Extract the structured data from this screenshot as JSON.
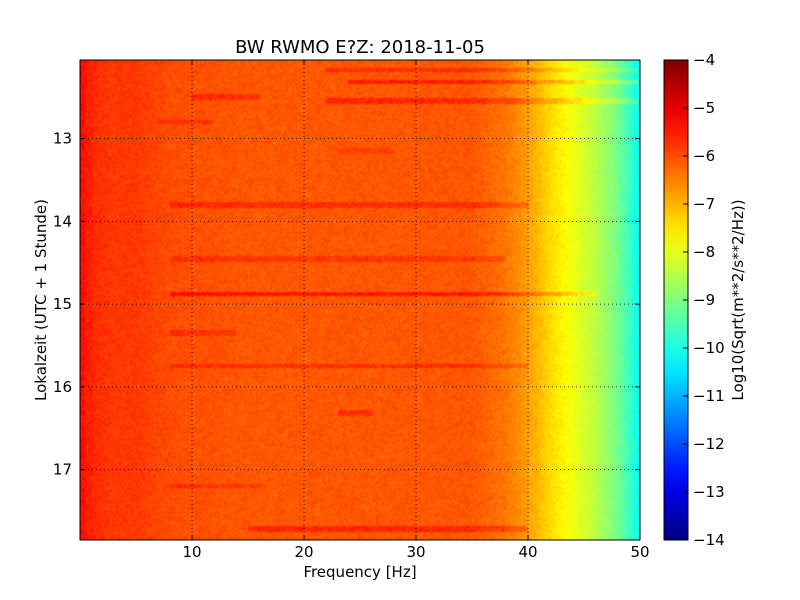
{
  "chart_data": {
    "type": "heatmap",
    "title": "BW RWMO E?Z: 2018-11-05",
    "xlabel": "Frequency [Hz]",
    "ylabel": "Lokalzeit (UTC + 1 Stunde)",
    "xlim": [
      0,
      50
    ],
    "ylim": [
      17.85,
      12.05
    ],
    "x_ticks": [
      10,
      20,
      30,
      40,
      50
    ],
    "y_ticks": [
      13,
      14,
      15,
      16,
      17
    ],
    "grid": true,
    "colormap": "jet",
    "colorbar": {
      "label": "Log10(Sqrt(m**2/s**2/Hz))",
      "vmin": -14,
      "vmax": -4,
      "ticks": [
        -4,
        -5,
        -6,
        -7,
        -8,
        -9,
        -10,
        -11,
        -12,
        -13,
        -14
      ]
    },
    "freq_profile": {
      "frequency_hz": [
        0,
        0.5,
        1.5,
        3,
        5,
        8,
        15,
        25,
        35,
        38,
        40,
        42,
        44,
        46,
        48,
        50
      ],
      "log10_amplitude": [
        -5.3,
        -5.5,
        -5.7,
        -5.8,
        -5.8,
        -6.0,
        -6.1,
        -6.1,
        -6.1,
        -6.4,
        -6.8,
        -7.4,
        -7.9,
        -8.4,
        -9.1,
        -10.2
      ]
    },
    "bands": [
      {
        "time": 12.17,
        "f_start": 22,
        "f_end": 50,
        "delta": 0.5
      },
      {
        "time": 12.32,
        "f_start": 24,
        "f_end": 50,
        "delta": 0.7
      },
      {
        "time": 12.5,
        "f_start": 10,
        "f_end": 16,
        "delta": 0.5
      },
      {
        "time": 12.55,
        "f_start": 22,
        "f_end": 50,
        "delta": 0.6
      },
      {
        "time": 12.8,
        "f_start": 7,
        "f_end": 12,
        "delta": 0.4
      },
      {
        "time": 13.15,
        "f_start": 23,
        "f_end": 28,
        "delta": 0.3
      },
      {
        "time": 13.8,
        "f_start": 8,
        "f_end": 40,
        "delta": 0.5
      },
      {
        "time": 14.45,
        "f_start": 8,
        "f_end": 38,
        "delta": 0.4
      },
      {
        "time": 14.88,
        "f_start": 8,
        "f_end": 46,
        "delta": 0.8
      },
      {
        "time": 15.35,
        "f_start": 8,
        "f_end": 14,
        "delta": 0.4
      },
      {
        "time": 15.75,
        "f_start": 8,
        "f_end": 40,
        "delta": 0.5
      },
      {
        "time": 16.32,
        "f_start": 23,
        "f_end": 26,
        "delta": 0.5
      },
      {
        "time": 17.2,
        "f_start": 8,
        "f_end": 16,
        "delta": 0.4
      },
      {
        "time": 17.72,
        "f_start": 15,
        "f_end": 40,
        "delta": 0.6
      }
    ]
  }
}
